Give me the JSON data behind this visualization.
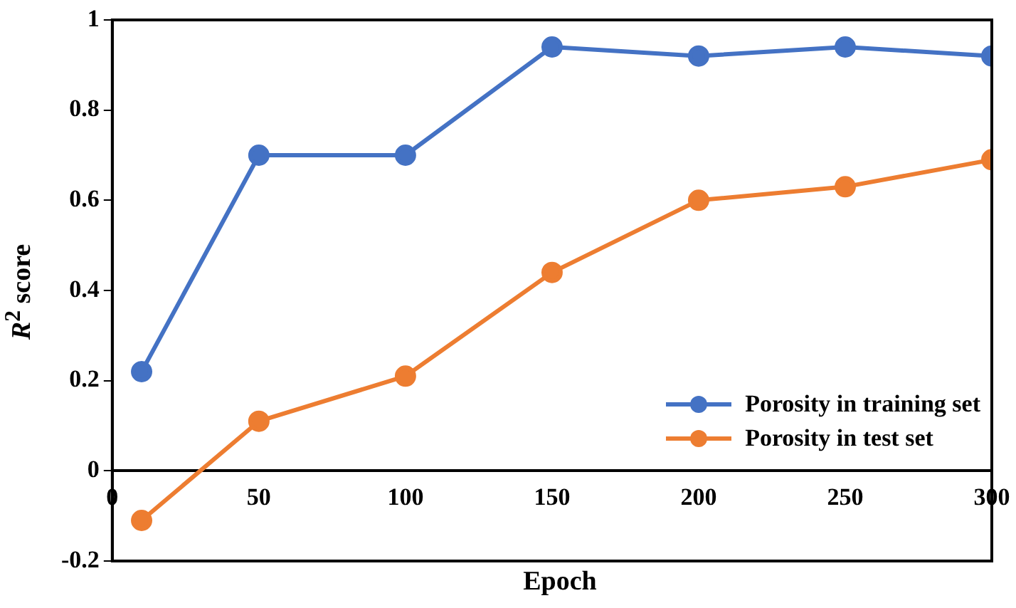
{
  "chart_data": {
    "type": "line",
    "xlabel": "Epoch",
    "ylabel": "R$^{2}$ score",
    "x": [
      10,
      50,
      100,
      150,
      200,
      250,
      300
    ],
    "series": [
      {
        "name": "Porosity in training set",
        "color": "#4472c4",
        "values": [
          0.22,
          0.7,
          0.7,
          0.94,
          0.92,
          0.94,
          0.92
        ]
      },
      {
        "name": "Porosity in test set",
        "color": "#ed7d31",
        "values": [
          -0.11,
          0.11,
          0.21,
          0.44,
          0.6,
          0.63,
          0.69
        ]
      }
    ],
    "xlim": [
      0,
      300
    ],
    "xticks": [
      0,
      50,
      100,
      150,
      200,
      250,
      300
    ],
    "ylim": [
      -0.2,
      1
    ],
    "yticks": [
      -0.2,
      0,
      0.2,
      0.4,
      0.6,
      0.8,
      1
    ],
    "grid": false,
    "legend": "bottom right",
    "marker": "circle",
    "line_style": "solid"
  }
}
